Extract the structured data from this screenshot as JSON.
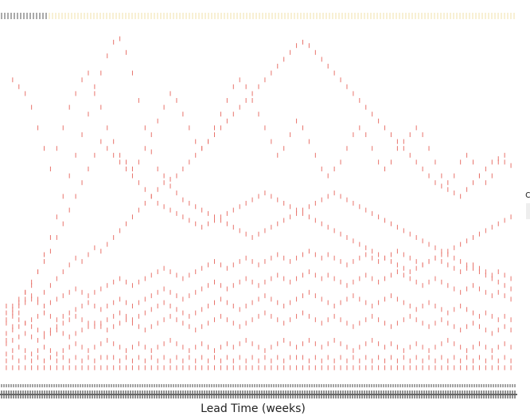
{
  "chart_data": {
    "type": "scatter",
    "title": "",
    "xlabel": "Lead Time (weeks)",
    "ylabel": "",
    "xlim": [
      0,
      82
    ],
    "ylim": [
      0,
      100
    ],
    "grid": false,
    "legend": "none",
    "colors": {
      "series": "#e8736b",
      "top_marks_light": "#f0e0a8",
      "top_marks_dark": "#555555",
      "x_ticks": "#444444",
      "background": "#ffffff"
    },
    "x": [
      1,
      2,
      3,
      4,
      5,
      6,
      7,
      8,
      9,
      10,
      11,
      12,
      13,
      14,
      15,
      16,
      17,
      18,
      19,
      20,
      21,
      22,
      23,
      24,
      25,
      26,
      27,
      28,
      29,
      30,
      31,
      32,
      33,
      34,
      35,
      36,
      37,
      38,
      39,
      40,
      41,
      42,
      43,
      44,
      45,
      46,
      47,
      48,
      49,
      50,
      51,
      52,
      53,
      54,
      55,
      56,
      57,
      58,
      59,
      60,
      61,
      62,
      63,
      64,
      65,
      66,
      67,
      68,
      69,
      70,
      71,
      72,
      73,
      74,
      75,
      76,
      77,
      78,
      79,
      80,
      81
    ],
    "series": [
      {
        "values": [
          2,
          2,
          2,
          2,
          2,
          2,
          2,
          2,
          2,
          2,
          2,
          2,
          2,
          2,
          2,
          2,
          2,
          2,
          2,
          2,
          2,
          2,
          2,
          2,
          2,
          2,
          2,
          2,
          2,
          2,
          2,
          2,
          2,
          2,
          2,
          2,
          2,
          2,
          2,
          2,
          2,
          2,
          2,
          2,
          2,
          2,
          2,
          2,
          2,
          2,
          2,
          2,
          2,
          2,
          2,
          2,
          2,
          2,
          2,
          2,
          2,
          2,
          2,
          2,
          2,
          2,
          2,
          2,
          2,
          2,
          2,
          2,
          2,
          2,
          2,
          2,
          2,
          2,
          2,
          2,
          2
        ]
      },
      {
        "values": [
          4,
          5,
          4,
          5,
          4,
          5,
          4,
          5,
          4,
          5,
          4,
          5,
          4,
          5,
          4,
          5,
          5,
          5,
          4,
          5,
          4,
          5,
          4,
          5,
          4,
          5,
          4,
          5,
          4,
          5,
          4,
          5,
          4,
          5,
          4,
          5,
          4,
          5,
          4,
          5,
          4,
          5,
          4,
          5,
          4,
          5,
          5,
          5,
          4,
          5,
          4,
          5,
          4,
          5,
          4,
          5,
          4,
          5,
          4,
          5,
          4,
          5,
          4,
          5,
          4,
          5,
          4,
          5,
          4,
          5,
          4,
          5,
          4,
          5,
          4,
          5,
          4,
          5,
          4,
          5,
          4
        ]
      },
      {
        "values": [
          6,
          7,
          8,
          7,
          6,
          7,
          8,
          7,
          6,
          7,
          8,
          9,
          8,
          7,
          8,
          9,
          10,
          9,
          8,
          7,
          8,
          9,
          8,
          7,
          8,
          9,
          10,
          9,
          8,
          7,
          8,
          9,
          8,
          7,
          8,
          9,
          8,
          9,
          10,
          9,
          8,
          7,
          8,
          9,
          10,
          9,
          8,
          9,
          10,
          9,
          8,
          9,
          10,
          9,
          8,
          7,
          8,
          9,
          10,
          9,
          8,
          9,
          8,
          7,
          8,
          9,
          8,
          7,
          8,
          9,
          10,
          9,
          8,
          7,
          8,
          9,
          8,
          7,
          8,
          9,
          8
        ]
      },
      {
        "values": [
          9,
          10,
          11,
          12,
          11,
          10,
          11,
          12,
          13,
          12,
          11,
          12,
          13,
          14,
          15,
          14,
          13,
          14,
          15,
          16,
          15,
          14,
          13,
          14,
          15,
          16,
          17,
          16,
          15,
          14,
          13,
          14,
          15,
          16,
          17,
          16,
          15,
          14,
          15,
          16,
          17,
          18,
          17,
          16,
          15,
          16,
          17,
          18,
          17,
          16,
          15,
          16,
          17,
          16,
          15,
          14,
          15,
          16,
          17,
          16,
          15,
          14,
          15,
          16,
          17,
          16,
          15,
          14,
          15,
          16,
          15,
          14,
          13,
          14,
          15,
          14,
          13,
          12,
          13,
          14,
          13
        ]
      },
      {
        "values": [
          12,
          13,
          14,
          15,
          14,
          13,
          12,
          13,
          14,
          15,
          16,
          17,
          16,
          15,
          14,
          15,
          16,
          17,
          18,
          17,
          16,
          17,
          18,
          19,
          20,
          21,
          20,
          19,
          18,
          17,
          18,
          19,
          20,
          21,
          22,
          21,
          20,
          19,
          20,
          21,
          22,
          23,
          22,
          21,
          20,
          21,
          22,
          23,
          24,
          23,
          22,
          21,
          20,
          21,
          22,
          23,
          22,
          21,
          20,
          21,
          22,
          23,
          22,
          21,
          20,
          19,
          20,
          21,
          20,
          19,
          18,
          19,
          20,
          19,
          18,
          17,
          18,
          17,
          16,
          17,
          16
        ]
      },
      {
        "values": [
          16,
          17,
          16,
          15,
          16,
          17,
          18,
          17,
          16,
          17,
          18,
          19,
          20,
          21,
          20,
          19,
          20,
          21,
          22,
          21,
          20,
          21,
          22,
          23,
          24,
          25,
          24,
          23,
          22,
          23,
          24,
          25,
          26,
          27,
          26,
          25,
          26,
          27,
          28,
          27,
          26,
          27,
          28,
          29,
          28,
          27,
          28,
          29,
          30,
          29,
          28,
          29,
          28,
          27,
          26,
          27,
          28,
          29,
          28,
          27,
          28,
          29,
          30,
          29,
          28,
          27,
          26,
          27,
          28,
          27,
          26,
          25,
          24,
          25,
          26,
          25,
          24,
          23,
          24,
          23,
          22
        ]
      },
      {
        "values": [
          20,
          19,
          20,
          21,
          22,
          21,
          20,
          21,
          22,
          23,
          24,
          25,
          24,
          23,
          24,
          25,
          26,
          27,
          28,
          27,
          26,
          27,
          28,
          29,
          30,
          31,
          30,
          29,
          28,
          29,
          30,
          31,
          32,
          33,
          32,
          31,
          32,
          33,
          34,
          33,
          32,
          33,
          34,
          35,
          34,
          33,
          34,
          35,
          36,
          35,
          34,
          35,
          34,
          33,
          32,
          33,
          34,
          35,
          34,
          33,
          34,
          35,
          36,
          35,
          34,
          33,
          32,
          33,
          34,
          33,
          32,
          31,
          30,
          31,
          32,
          31,
          30,
          29,
          30,
          29,
          28
        ]
      },
      {
        "values": [
          18,
          20,
          22,
          24,
          23,
          22,
          24,
          26,
          28,
          30,
          32,
          34,
          33,
          35,
          37,
          36,
          38,
          40,
          42,
          44,
          46,
          48,
          50,
          52,
          54,
          56,
          55,
          53,
          51,
          50,
          49,
          48,
          47,
          46,
          45,
          44,
          43,
          42,
          41,
          40,
          41,
          42,
          43,
          44,
          45,
          46,
          47,
          48,
          49,
          50,
          51,
          52,
          53,
          52,
          51,
          50,
          49,
          48,
          47,
          46,
          45,
          44,
          43,
          42,
          41,
          40,
          39,
          38,
          37,
          36,
          35,
          34,
          33,
          32,
          31,
          30,
          29,
          28,
          27,
          26,
          25
        ]
      },
      {
        "values": [
          15,
          18,
          21,
          24,
          27,
          30,
          33,
          36,
          40,
          44,
          48,
          52,
          56,
          60,
          64,
          68,
          66,
          64,
          62,
          60,
          58,
          56,
          54,
          52,
          50,
          49,
          48,
          47,
          46,
          45,
          44,
          43,
          44,
          45,
          46,
          47,
          48,
          49,
          50,
          51,
          52,
          53,
          52,
          51,
          50,
          49,
          48,
          47,
          46,
          45,
          44,
          43,
          42,
          41,
          40,
          39,
          38,
          37,
          36,
          35,
          34,
          33,
          32,
          31,
          30,
          31,
          32,
          33,
          34,
          35,
          36,
          37,
          38,
          39,
          40,
          41,
          42,
          43,
          44,
          45,
          46
        ]
      },
      {
        "values": [
          10,
          14,
          18,
          22,
          26,
          30,
          35,
          40,
          46,
          52,
          58,
          64,
          70,
          76,
          82,
          88,
          93,
          97,
          98,
          94,
          88,
          80,
          72,
          65,
          60,
          58,
          57,
          58,
          60,
          62,
          64,
          66,
          68,
          70,
          72,
          74,
          76,
          78,
          80,
          82,
          84,
          86,
          88,
          90,
          92,
          94,
          96,
          97,
          96,
          94,
          92,
          90,
          88,
          86,
          84,
          82,
          80,
          78,
          76,
          74,
          72,
          70,
          68,
          66,
          64,
          62,
          60,
          58,
          56,
          55,
          54,
          53,
          52,
          54,
          56,
          58,
          60,
          62,
          63,
          62,
          61
        ]
      }
    ],
    "points": [
      [
        2,
        86
      ],
      [
        3,
        84
      ],
      [
        4,
        82
      ],
      [
        5,
        78
      ],
      [
        6,
        72
      ],
      [
        7,
        66
      ],
      [
        8,
        60
      ],
      [
        9,
        66
      ],
      [
        10,
        72
      ],
      [
        11,
        78
      ],
      [
        12,
        82
      ],
      [
        13,
        86
      ],
      [
        14,
        88
      ],
      [
        15,
        84
      ],
      [
        16,
        78
      ],
      [
        17,
        72
      ],
      [
        18,
        68
      ],
      [
        19,
        64
      ],
      [
        20,
        62
      ],
      [
        21,
        60
      ],
      [
        22,
        62
      ],
      [
        23,
        66
      ],
      [
        24,
        70
      ],
      [
        25,
        74
      ],
      [
        26,
        78
      ],
      [
        27,
        82
      ],
      [
        28,
        80
      ],
      [
        29,
        76
      ],
      [
        30,
        72
      ],
      [
        31,
        68
      ],
      [
        32,
        66
      ],
      [
        33,
        68
      ],
      [
        34,
        72
      ],
      [
        35,
        76
      ],
      [
        36,
        80
      ],
      [
        37,
        84
      ],
      [
        38,
        86
      ],
      [
        39,
        84
      ],
      [
        40,
        80
      ],
      [
        41,
        76
      ],
      [
        42,
        72
      ],
      [
        43,
        68
      ],
      [
        44,
        64
      ],
      [
        45,
        66
      ],
      [
        46,
        70
      ],
      [
        47,
        74
      ],
      [
        48,
        72
      ],
      [
        49,
        68
      ],
      [
        50,
        64
      ],
      [
        51,
        60
      ],
      [
        52,
        58
      ],
      [
        53,
        60
      ],
      [
        54,
        62
      ],
      [
        55,
        66
      ],
      [
        56,
        70
      ],
      [
        57,
        72
      ],
      [
        58,
        70
      ],
      [
        59,
        66
      ],
      [
        60,
        62
      ],
      [
        61,
        60
      ],
      [
        62,
        62
      ],
      [
        63,
        66
      ],
      [
        64,
        68
      ],
      [
        65,
        70
      ],
      [
        66,
        72
      ],
      [
        67,
        70
      ],
      [
        68,
        66
      ],
      [
        69,
        62
      ],
      [
        70,
        58
      ],
      [
        71,
        56
      ],
      [
        72,
        58
      ],
      [
        73,
        62
      ],
      [
        74,
        64
      ],
      [
        75,
        62
      ],
      [
        76,
        58
      ],
      [
        77,
        56
      ],
      [
        78,
        58
      ],
      [
        79,
        62
      ],
      [
        80,
        64
      ]
    ]
  },
  "edge_glyph": "c"
}
